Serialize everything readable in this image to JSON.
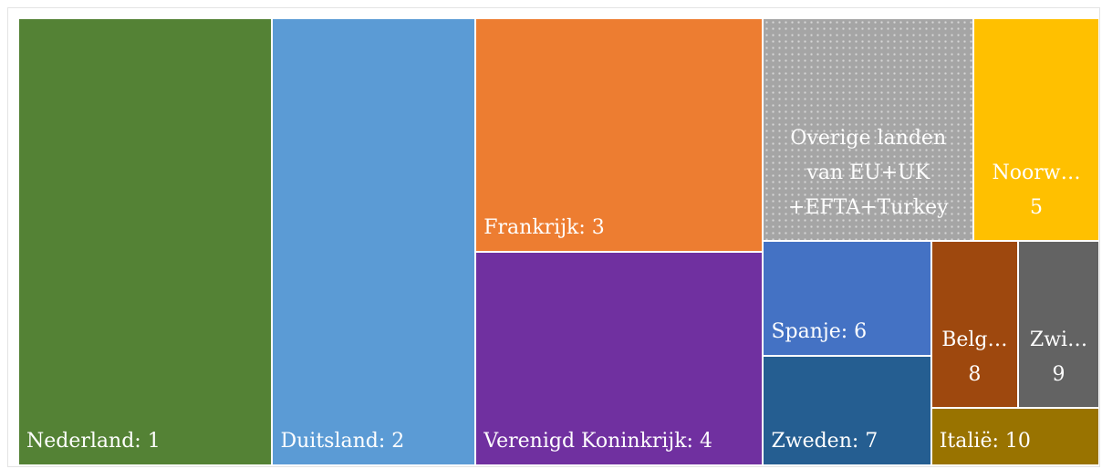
{
  "chart_data": {
    "type": "treemap",
    "labels": [
      [
        "Nederland: 1"
      ],
      [
        "Duitsland: 2"
      ],
      [
        "Frankrijk: 3"
      ],
      [
        "Verenigd Koninkrijk: 4"
      ],
      [
        "Overige landen",
        "van EU+UK",
        "+EFTA+Turkey"
      ],
      [
        "Noorw…",
        "5"
      ],
      [
        "Spanje: 6"
      ],
      [
        "Zweden: 7"
      ],
      [
        "Belg…",
        "8"
      ],
      [
        "Zwi…",
        "9"
      ],
      [
        "Italië: 10"
      ]
    ],
    "values": [
      23.5,
      18.8,
      13.9,
      12.7,
      9.7,
      5.8,
      4.0,
      3.8,
      3.0,
      2.8,
      2.0
    ],
    "colors": [
      "#548235",
      "#5b9bd5",
      "#ed7d31",
      "#7030a0",
      "#a5a5a5",
      "#ffc000",
      "#4472c4",
      "#255e91",
      "#9e480e",
      "#636363",
      "#997300"
    ]
  }
}
